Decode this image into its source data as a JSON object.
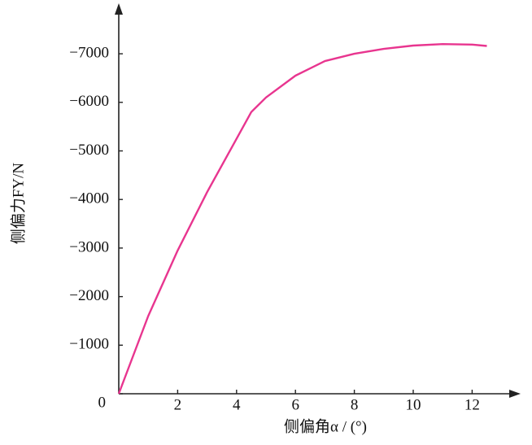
{
  "chart_data": {
    "type": "line",
    "x_label": "侧偏角α / (°)",
    "y_label": "侧偏力FY/N",
    "x": [
      0,
      1,
      2,
      3,
      4,
      4.5,
      5,
      6,
      7,
      8,
      9,
      10,
      11,
      12,
      12.5
    ],
    "series": [
      {
        "color": "#e8358f",
        "values": [
          0,
          -1600,
          -2950,
          -4150,
          -5250,
          -5800,
          -6100,
          -6550,
          -6850,
          -7000,
          -7100,
          -7170,
          -7200,
          -7190,
          -7160
        ]
      }
    ],
    "xlim": [
      0,
      13.5
    ],
    "ylim": [
      0,
      -7900
    ],
    "xticks": [
      2,
      4,
      6,
      8,
      10,
      12
    ],
    "yticks": [
      {
        "value": 0,
        "label": "0"
      },
      {
        "value": -1000,
        "label": "−1000"
      },
      {
        "value": -2000,
        "label": "−2000"
      },
      {
        "value": -3000,
        "label": "−3000"
      },
      {
        "value": -4000,
        "label": "−4000"
      },
      {
        "value": -5000,
        "label": "−5000"
      },
      {
        "value": -6000,
        "label": "−6000"
      },
      {
        "value": -7000,
        "label": "−7000"
      }
    ]
  }
}
